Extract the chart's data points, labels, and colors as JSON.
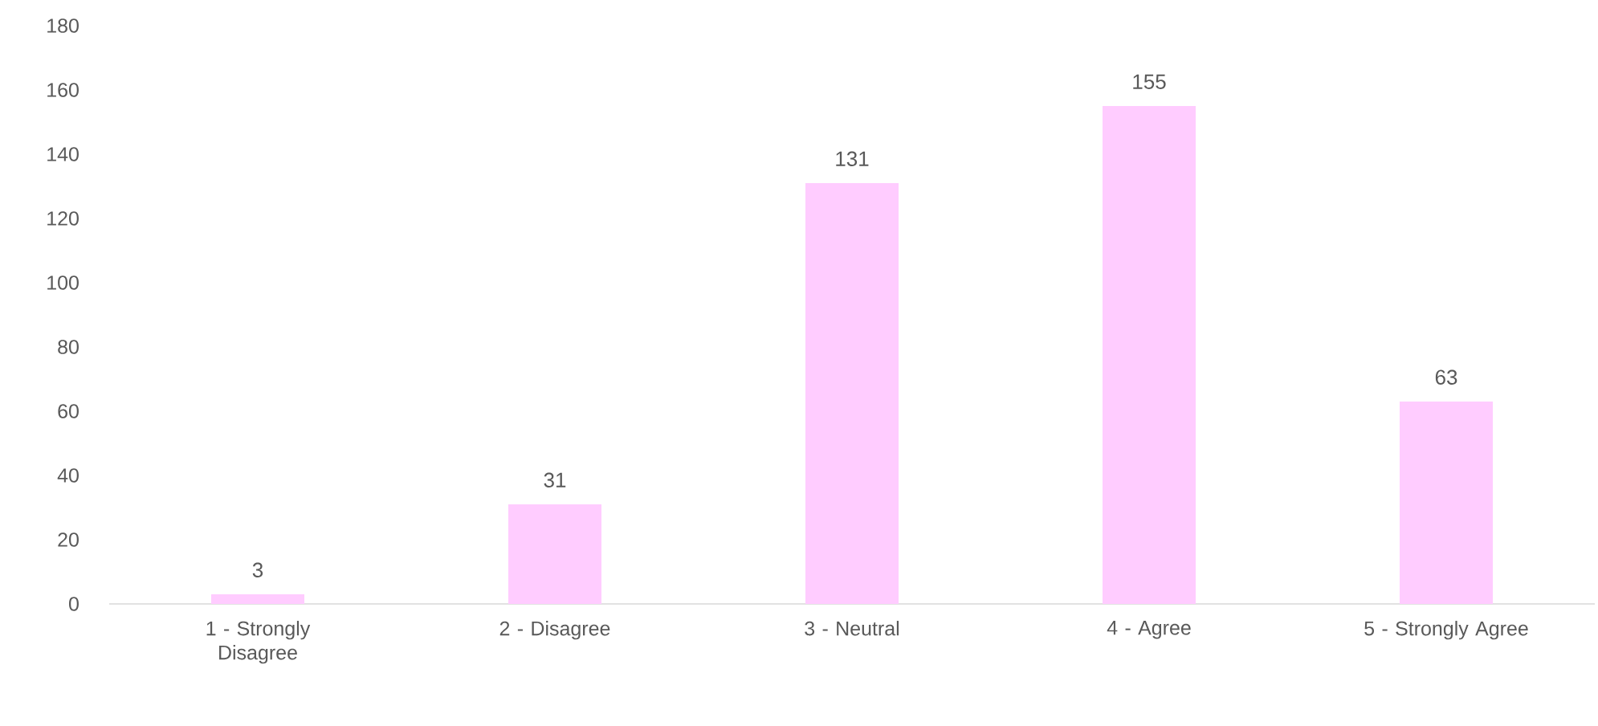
{
  "chart_data": {
    "type": "bar",
    "categories": [
      "1 - Strongly Disagree",
      "2 - Disagree",
      "3 - Neutral",
      "4 - Agree",
      "5 - Strongly Agree"
    ],
    "values": [
      3,
      31,
      131,
      155,
      63
    ],
    "color": "#ffccff",
    "ylim": [
      0,
      180
    ],
    "yticks": [
      0,
      20,
      40,
      60,
      80,
      100,
      120,
      140,
      160,
      180
    ],
    "data_labels": true
  }
}
